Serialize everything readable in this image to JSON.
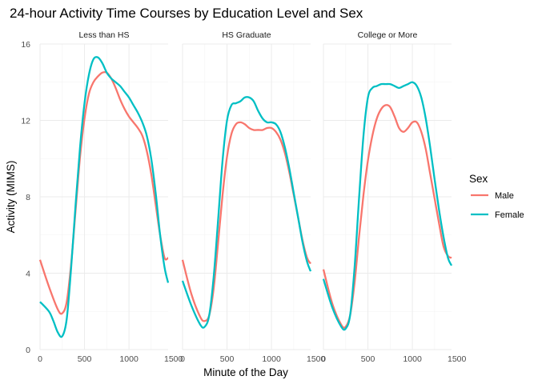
{
  "chart_data": {
    "type": "line",
    "title": "24-hour Activity Time Courses by Education Level and Sex",
    "xlabel": "Minute of the Day",
    "ylabel": "Activity (MIMS)",
    "xlim": [
      0,
      1440
    ],
    "ylim": [
      0,
      16
    ],
    "x_ticks": [
      0,
      500,
      1000,
      1500
    ],
    "x_tick_labels_first_panel": [
      "0",
      "500",
      "1000",
      "1500"
    ],
    "x_tick_labels_other_panels": [
      "0",
      "500",
      "1000",
      "1500"
    ],
    "y_ticks": [
      0,
      4,
      8,
      12,
      16
    ],
    "y_tick_labels": [
      "0",
      "4",
      "8",
      "12",
      "16"
    ],
    "grid": true,
    "legend": {
      "title": "Sex",
      "position": "right",
      "entries": [
        {
          "label": "Male",
          "color": "#F8766D"
        },
        {
          "label": "Female",
          "color": "#00BFC4"
        }
      ]
    },
    "panels": [
      {
        "strip": "Less than HS",
        "series": [
          {
            "name": "Male",
            "color": "#F8766D",
            "x": [
              0,
              100,
              200,
              250,
              300,
              350,
              400,
              450,
              500,
              550,
              600,
              650,
              700,
              750,
              800,
              850,
              900,
              950,
              1000,
              1050,
              1100,
              1150,
              1200,
              1250,
              1300,
              1350,
              1400,
              1440
            ],
            "y": [
              4.7,
              3.3,
              2.1,
              1.9,
              2.5,
              4.5,
              7.3,
              10.1,
              12.1,
              13.4,
              14.0,
              14.3,
              14.5,
              14.5,
              14.2,
              13.7,
              13.1,
              12.6,
              12.2,
              11.9,
              11.6,
              11.2,
              10.4,
              9.2,
              7.6,
              6.0,
              4.8,
              4.8
            ]
          },
          {
            "name": "Female",
            "color": "#00BFC4",
            "x": [
              0,
              100,
              150,
              200,
              250,
              300,
              350,
              400,
              450,
              500,
              550,
              600,
              650,
              700,
              750,
              800,
              850,
              900,
              950,
              1000,
              1050,
              1100,
              1150,
              1200,
              1250,
              1300,
              1350,
              1400,
              1440
            ],
            "y": [
              2.5,
              2.0,
              1.5,
              0.9,
              0.7,
              1.6,
              4.3,
              7.6,
              10.6,
              12.9,
              14.4,
              15.2,
              15.3,
              15.0,
              14.5,
              14.2,
              14.0,
              13.8,
              13.5,
              13.2,
              12.8,
              12.4,
              11.9,
              11.2,
              10.0,
              8.2,
              6.0,
              4.3,
              3.5
            ]
          }
        ]
      },
      {
        "strip": "HS Graduate",
        "series": [
          {
            "name": "Male",
            "color": "#F8766D",
            "x": [
              0,
              100,
              200,
              250,
              300,
              350,
              400,
              450,
              500,
              550,
              600,
              650,
              700,
              750,
              800,
              850,
              900,
              950,
              1000,
              1050,
              1100,
              1150,
              1200,
              1250,
              1300,
              1350,
              1400,
              1440
            ],
            "y": [
              4.7,
              2.9,
              1.7,
              1.5,
              1.8,
              3.2,
              5.6,
              8.1,
              10.1,
              11.3,
              11.8,
              11.9,
              11.8,
              11.6,
              11.5,
              11.5,
              11.5,
              11.6,
              11.6,
              11.4,
              11.0,
              10.3,
              9.3,
              8.1,
              6.9,
              5.7,
              4.8,
              4.5
            ]
          },
          {
            "name": "Female",
            "color": "#00BFC4",
            "x": [
              0,
              100,
              200,
              250,
              300,
              350,
              400,
              450,
              500,
              550,
              600,
              650,
              700,
              750,
              800,
              850,
              900,
              950,
              1000,
              1050,
              1100,
              1150,
              1200,
              1250,
              1300,
              1350,
              1400,
              1440
            ],
            "y": [
              3.6,
              2.3,
              1.3,
              1.2,
              1.8,
              3.8,
              6.8,
              9.9,
              12.0,
              12.8,
              12.9,
              13.0,
              13.2,
              13.2,
              13.0,
              12.5,
              12.1,
              11.9,
              11.9,
              11.8,
              11.4,
              10.6,
              9.5,
              8.2,
              6.9,
              5.6,
              4.6,
              4.1
            ]
          }
        ]
      },
      {
        "strip": "College or More",
        "series": [
          {
            "name": "Male",
            "color": "#F8766D",
            "x": [
              0,
              100,
              200,
              250,
              300,
              350,
              400,
              450,
              500,
              550,
              600,
              650,
              700,
              750,
              800,
              850,
              900,
              950,
              1000,
              1050,
              1100,
              1150,
              1200,
              1250,
              1300,
              1350,
              1400,
              1440
            ],
            "y": [
              4.2,
              2.4,
              1.3,
              1.2,
              1.8,
              3.5,
              5.9,
              8.1,
              9.9,
              11.2,
              12.1,
              12.6,
              12.8,
              12.7,
              12.2,
              11.6,
              11.4,
              11.6,
              11.9,
              11.9,
              11.4,
              10.5,
              9.2,
              7.9,
              6.6,
              5.4,
              4.9,
              4.8
            ]
          },
          {
            "name": "Female",
            "color": "#00BFC4",
            "x": [
              0,
              100,
              200,
              250,
              300,
              350,
              400,
              450,
              500,
              550,
              600,
              650,
              700,
              750,
              800,
              850,
              900,
              950,
              1000,
              1050,
              1100,
              1150,
              1200,
              1250,
              1300,
              1350,
              1400,
              1440
            ],
            "y": [
              3.7,
              2.2,
              1.2,
              1.1,
              1.8,
              4.3,
              7.9,
              11.2,
              13.2,
              13.7,
              13.8,
              13.9,
              13.9,
              13.9,
              13.8,
              13.7,
              13.8,
              13.9,
              14.0,
              13.8,
              13.2,
              12.1,
              10.6,
              8.9,
              7.3,
              5.9,
              4.8,
              4.4
            ]
          }
        ]
      }
    ]
  }
}
